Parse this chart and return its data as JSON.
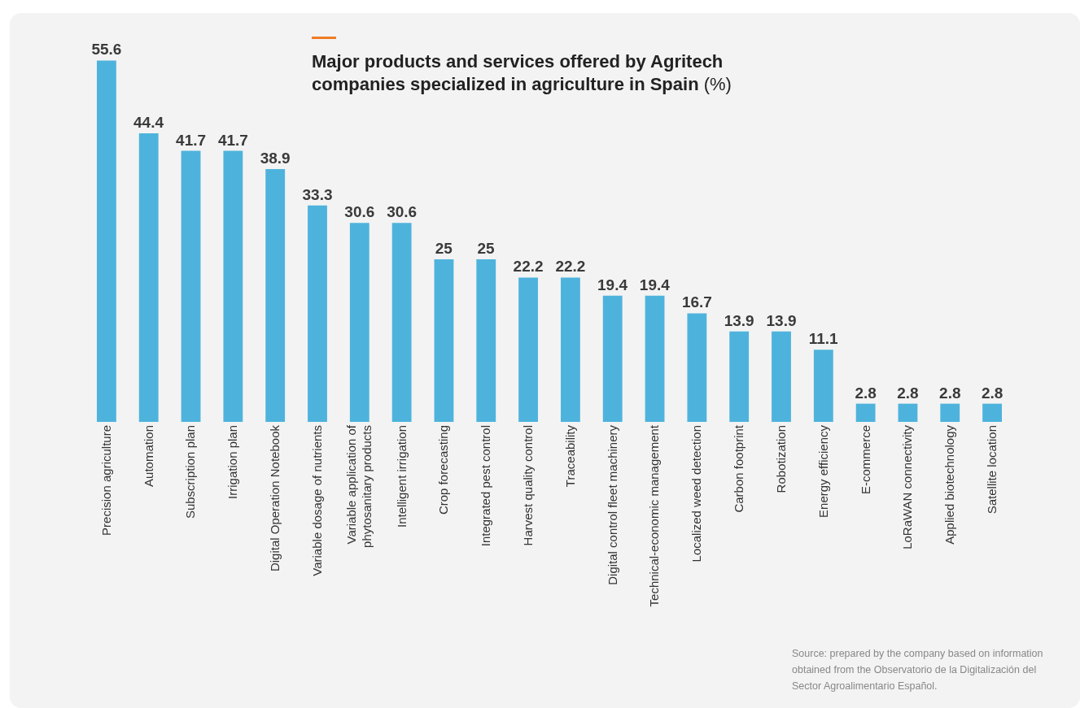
{
  "chart_data": {
    "type": "bar",
    "title": "Major products and services offered by Agritech companies specialized in agriculture in Spain (%)",
    "categories": [
      "Precision agriculture",
      "Automation",
      "Subscription plan",
      "Irrigation plan",
      "Digital Operation Notebook",
      "Variable dosage of nutrients",
      "Variable application of phytosanitary products",
      "Intelligent irrigation",
      "Crop forecasting",
      "Integrated pest control",
      "Harvest quality control",
      "Traceability",
      "Digital control fleet machinery",
      "Technical-economic management",
      "Localized weed detection",
      "Carbon footprint",
      "Robotization",
      "Energy efficiency",
      "E-commerce",
      "LoRaWAN connectivity",
      "Applied biotechnology",
      "Satellite location"
    ],
    "values": [
      55.6,
      44.4,
      41.7,
      41.7,
      38.9,
      33.3,
      30.6,
      30.6,
      25,
      25,
      22.2,
      22.2,
      19.4,
      19.4,
      16.7,
      13.9,
      13.9,
      11.1,
      2.8,
      2.8,
      2.8,
      2.8
    ],
    "color": "#4eb3dc",
    "tick_labels": "x",
    "data_labels": true,
    "annotations": [
      "Source: prepared by the company based on information obtained from the Observatorio de la Digitalización del Sector Agroalimentario Español."
    ]
  }
}
